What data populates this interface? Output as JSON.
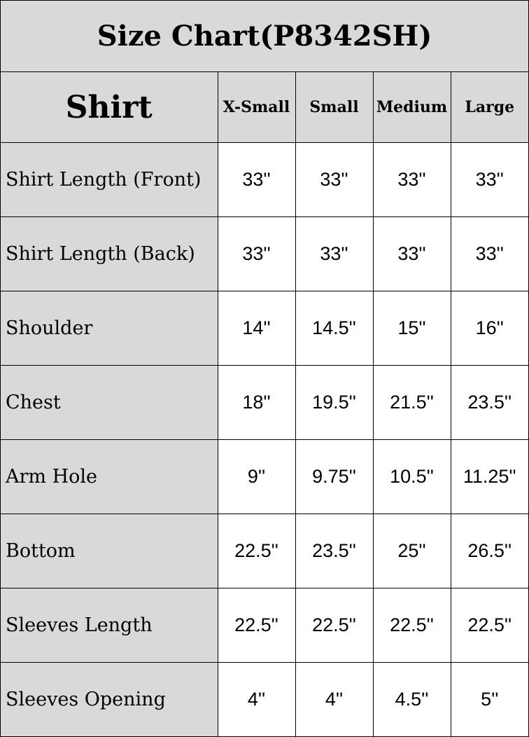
{
  "title": "Size Chart(P8342SH)",
  "section": "Shirt",
  "sizes": [
    "X-Small",
    "Small",
    "Medium",
    "Large"
  ],
  "rows": [
    {
      "label": "Shirt Length (Front)",
      "values": [
        "33''",
        "33''",
        "33''",
        "33''"
      ]
    },
    {
      "label": "Shirt Length (Back)",
      "values": [
        "33''",
        "33''",
        "33''",
        "33''"
      ]
    },
    {
      "label": "Shoulder",
      "values": [
        "14''",
        "14.5''",
        "15''",
        "16''"
      ]
    },
    {
      "label": "Chest",
      "values": [
        "18''",
        "19.5''",
        "21.5''",
        "23.5''"
      ]
    },
    {
      "label": "Arm Hole",
      "values": [
        "9''",
        "9.75''",
        "10.5''",
        "11.25''"
      ]
    },
    {
      "label": "Bottom",
      "values": [
        "22.5''",
        "23.5''",
        "25''",
        "26.5''"
      ]
    },
    {
      "label": "Sleeves Length",
      "values": [
        "22.5''",
        "22.5''",
        "22.5''",
        "22.5''"
      ]
    },
    {
      "label": "Sleeves Opening",
      "values": [
        "4''",
        "4''",
        "4.5''",
        "5''"
      ]
    }
  ],
  "colors": {
    "header_bg": "#d9d9d9",
    "cell_bg": "#ffffff",
    "border": "#000000"
  }
}
